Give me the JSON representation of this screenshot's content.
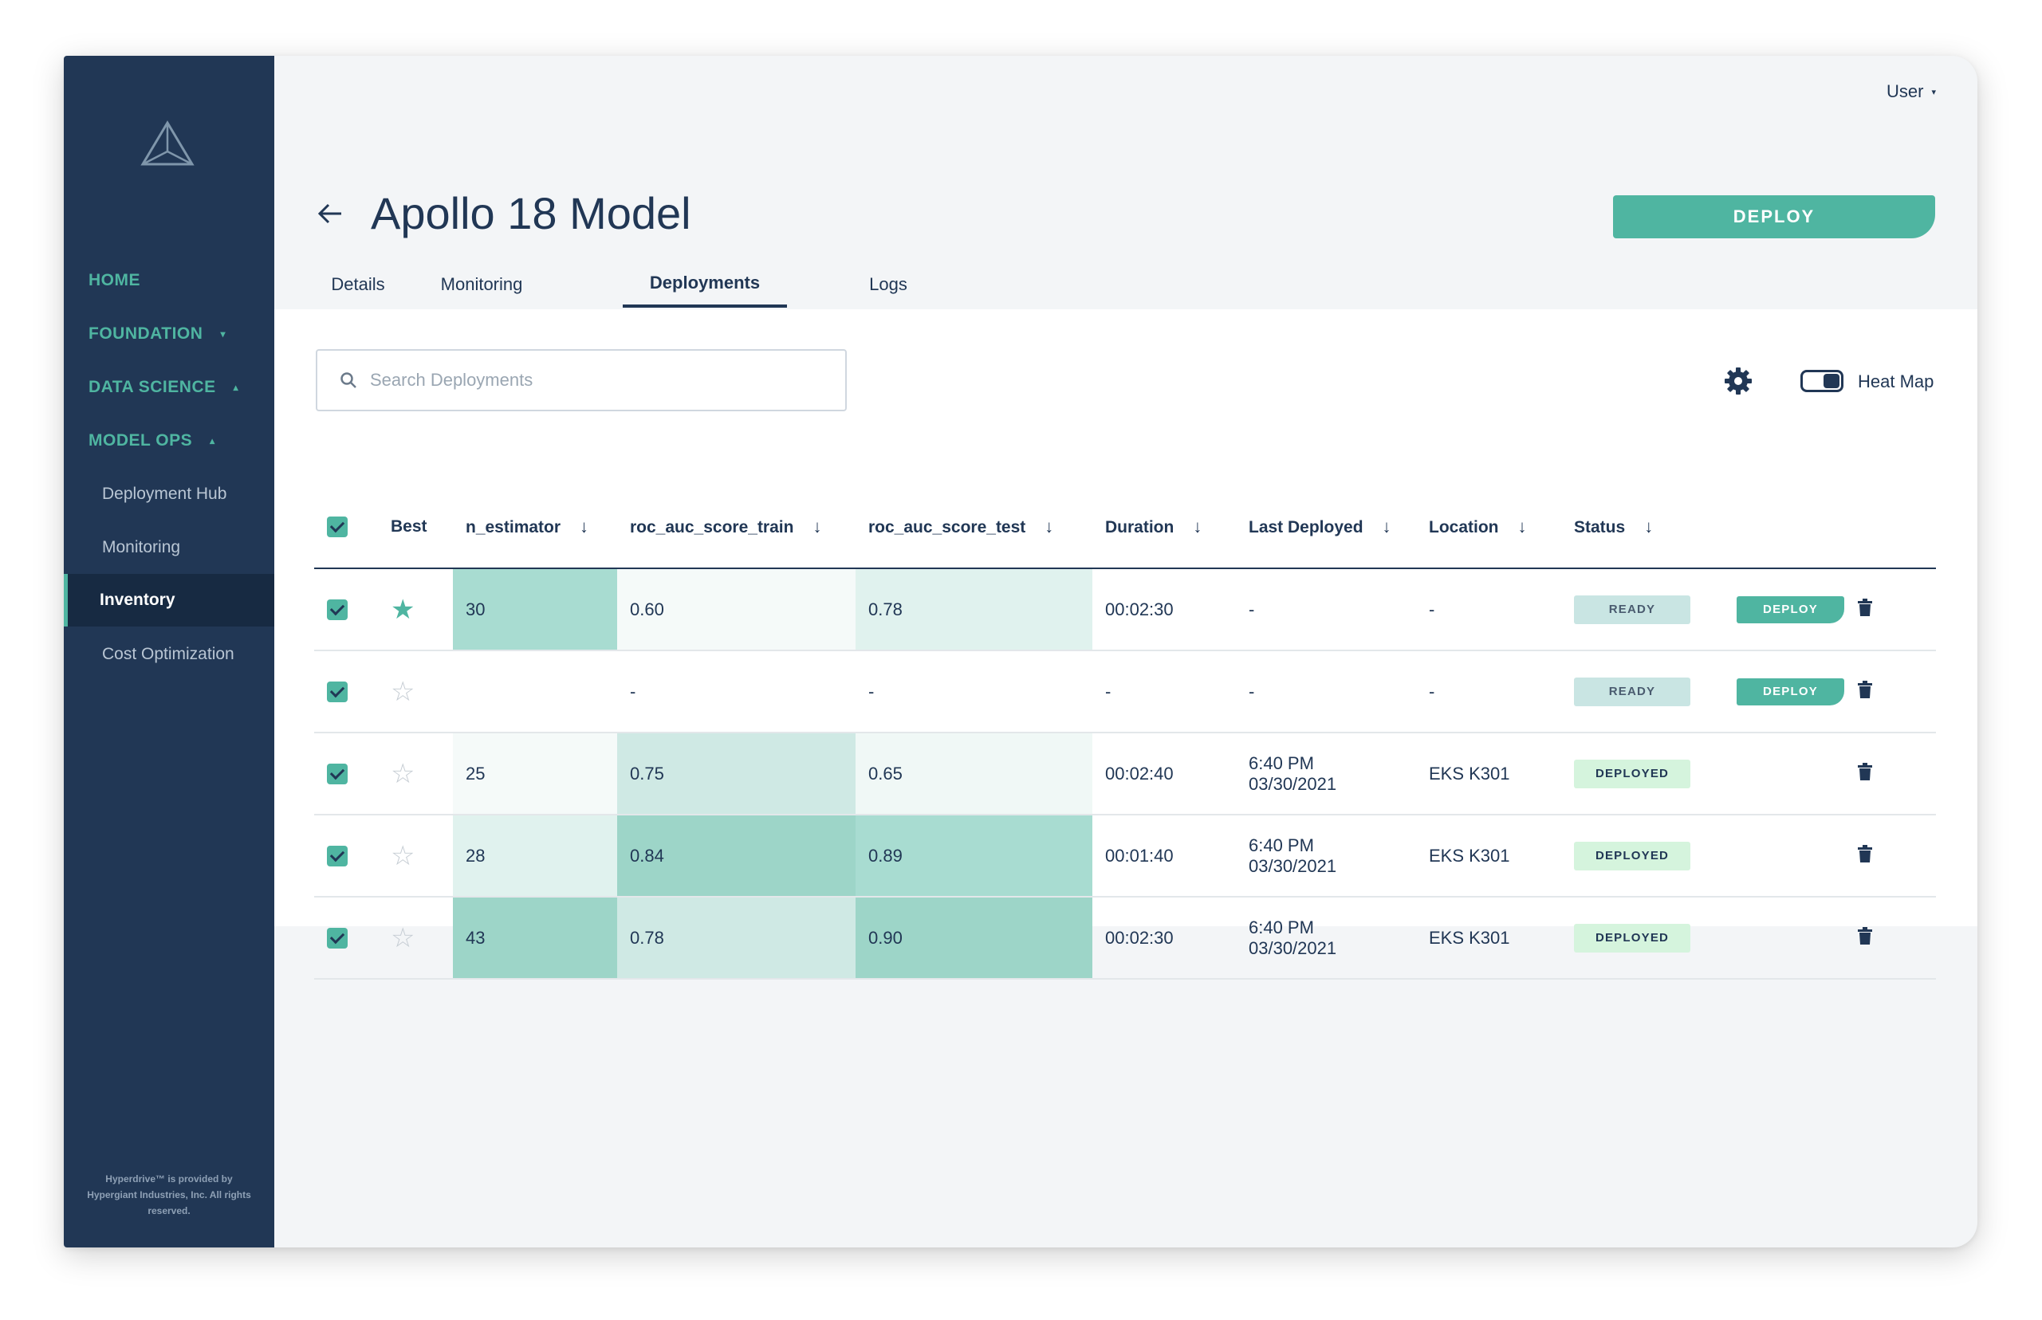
{
  "sidebar": {
    "nav": [
      {
        "label": "HOME",
        "caret": ""
      },
      {
        "label": "FOUNDATION",
        "caret": "▾"
      },
      {
        "label": "DATA SCIENCE",
        "caret": "▴"
      },
      {
        "label": "MODEL OPS",
        "caret": "▴"
      }
    ],
    "sub_items": [
      "Deployment Hub",
      "Monitoring",
      "Inventory",
      "Cost Optimization"
    ],
    "active_sub": "Inventory",
    "footer": "Hyperdrive™ is provided by Hypergiant Industries, Inc. All rights reserved."
  },
  "header": {
    "user_label": "User",
    "title": "Apollo 18 Model",
    "deploy_label": "DEPLOY",
    "tabs": [
      "Details",
      "Monitoring",
      "Deployments",
      "Logs"
    ],
    "active_tab": "Deployments"
  },
  "toolbar": {
    "search_placeholder": "Search Deployments",
    "search_value": "",
    "heatmap_label": "Heat Map",
    "heatmap_on": true
  },
  "table": {
    "columns": [
      "Best",
      "n_estimator",
      "roc_auc_score_train",
      "roc_auc_score_test",
      "Duration",
      "Last Deployed",
      "Location",
      "Status"
    ],
    "rows": [
      {
        "checked": true,
        "best": true,
        "n_estimator": "30",
        "train": "0.60",
        "test": "0.78",
        "duration": "00:02:30",
        "deployed_time": "-",
        "deployed_date": "",
        "location": "-",
        "status": "READY",
        "action": "DEPLOY",
        "heat": [
          "#a8dcd1",
          "#f5faf9",
          "#e0f2ee"
        ]
      },
      {
        "checked": true,
        "best": false,
        "n_estimator": "",
        "train": "-",
        "test": "-",
        "duration": "-",
        "deployed_time": "-",
        "deployed_date": "",
        "location": "-",
        "status": "READY",
        "action": "DEPLOY",
        "heat": [
          "#ffffff",
          "#ffffff",
          "#ffffff"
        ]
      },
      {
        "checked": true,
        "best": false,
        "n_estimator": "25",
        "train": "0.75",
        "test": "0.65",
        "duration": "00:02:40",
        "deployed_time": "6:40 PM",
        "deployed_date": "03/30/2021",
        "location": "EKS K301",
        "status": "DEPLOYED",
        "action": "",
        "heat": [
          "#f5faf9",
          "#cfe9e4",
          "#f0f8f6"
        ]
      },
      {
        "checked": true,
        "best": false,
        "n_estimator": "28",
        "train": "0.84",
        "test": "0.89",
        "duration": "00:01:40",
        "deployed_time": "6:40 PM",
        "deployed_date": "03/30/2021",
        "location": "EKS K301",
        "status": "DEPLOYED",
        "action": "",
        "heat": [
          "#e0f2ee",
          "#9dd5c8",
          "#a8dcd1"
        ]
      },
      {
        "checked": true,
        "best": false,
        "n_estimator": "43",
        "train": "0.78",
        "test": "0.90",
        "duration": "00:02:30",
        "deployed_time": "6:40 PM",
        "deployed_date": "03/30/2021",
        "location": "EKS K301",
        "status": "DEPLOYED",
        "action": "",
        "heat": [
          "#9dd5c8",
          "#cfe9e4",
          "#9dd5c8"
        ]
      }
    ]
  },
  "colors": {
    "accent": "#4fb5a1",
    "navy": "#213755",
    "sidebar": "#213755"
  }
}
